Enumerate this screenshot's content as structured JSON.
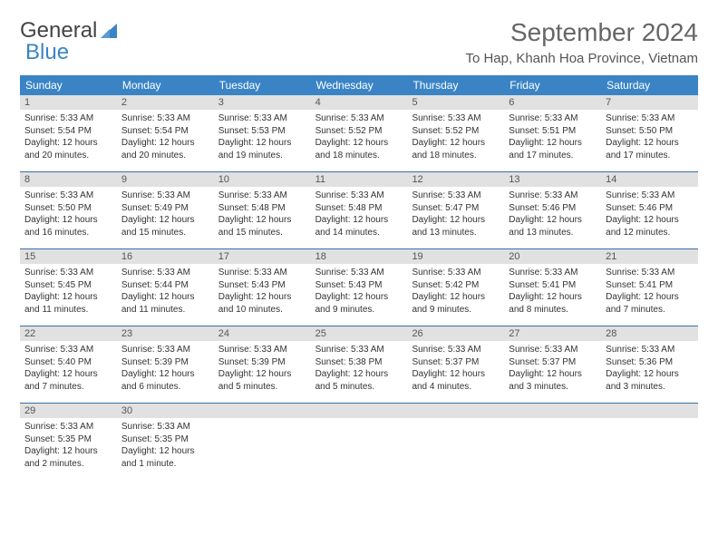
{
  "logo": {
    "word1": "General",
    "word2": "Blue"
  },
  "title": "September 2024",
  "location": "To Hap, Khanh Hoa Province, Vietnam",
  "colors": {
    "header_bg": "#3a84c5",
    "header_text": "#ffffff",
    "daynum_bg": "#e1e1e1",
    "week_border": "#3a6ea5",
    "logo_blue": "#3a84c5",
    "title_color": "#666666",
    "body_text": "#333333"
  },
  "day_names": [
    "Sunday",
    "Monday",
    "Tuesday",
    "Wednesday",
    "Thursday",
    "Friday",
    "Saturday"
  ],
  "weeks": [
    [
      {
        "n": "1",
        "sr": "Sunrise: 5:33 AM",
        "ss": "Sunset: 5:54 PM",
        "dl": "Daylight: 12 hours and 20 minutes."
      },
      {
        "n": "2",
        "sr": "Sunrise: 5:33 AM",
        "ss": "Sunset: 5:54 PM",
        "dl": "Daylight: 12 hours and 20 minutes."
      },
      {
        "n": "3",
        "sr": "Sunrise: 5:33 AM",
        "ss": "Sunset: 5:53 PM",
        "dl": "Daylight: 12 hours and 19 minutes."
      },
      {
        "n": "4",
        "sr": "Sunrise: 5:33 AM",
        "ss": "Sunset: 5:52 PM",
        "dl": "Daylight: 12 hours and 18 minutes."
      },
      {
        "n": "5",
        "sr": "Sunrise: 5:33 AM",
        "ss": "Sunset: 5:52 PM",
        "dl": "Daylight: 12 hours and 18 minutes."
      },
      {
        "n": "6",
        "sr": "Sunrise: 5:33 AM",
        "ss": "Sunset: 5:51 PM",
        "dl": "Daylight: 12 hours and 17 minutes."
      },
      {
        "n": "7",
        "sr": "Sunrise: 5:33 AM",
        "ss": "Sunset: 5:50 PM",
        "dl": "Daylight: 12 hours and 17 minutes."
      }
    ],
    [
      {
        "n": "8",
        "sr": "Sunrise: 5:33 AM",
        "ss": "Sunset: 5:50 PM",
        "dl": "Daylight: 12 hours and 16 minutes."
      },
      {
        "n": "9",
        "sr": "Sunrise: 5:33 AM",
        "ss": "Sunset: 5:49 PM",
        "dl": "Daylight: 12 hours and 15 minutes."
      },
      {
        "n": "10",
        "sr": "Sunrise: 5:33 AM",
        "ss": "Sunset: 5:48 PM",
        "dl": "Daylight: 12 hours and 15 minutes."
      },
      {
        "n": "11",
        "sr": "Sunrise: 5:33 AM",
        "ss": "Sunset: 5:48 PM",
        "dl": "Daylight: 12 hours and 14 minutes."
      },
      {
        "n": "12",
        "sr": "Sunrise: 5:33 AM",
        "ss": "Sunset: 5:47 PM",
        "dl": "Daylight: 12 hours and 13 minutes."
      },
      {
        "n": "13",
        "sr": "Sunrise: 5:33 AM",
        "ss": "Sunset: 5:46 PM",
        "dl": "Daylight: 12 hours and 13 minutes."
      },
      {
        "n": "14",
        "sr": "Sunrise: 5:33 AM",
        "ss": "Sunset: 5:46 PM",
        "dl": "Daylight: 12 hours and 12 minutes."
      }
    ],
    [
      {
        "n": "15",
        "sr": "Sunrise: 5:33 AM",
        "ss": "Sunset: 5:45 PM",
        "dl": "Daylight: 12 hours and 11 minutes."
      },
      {
        "n": "16",
        "sr": "Sunrise: 5:33 AM",
        "ss": "Sunset: 5:44 PM",
        "dl": "Daylight: 12 hours and 11 minutes."
      },
      {
        "n": "17",
        "sr": "Sunrise: 5:33 AM",
        "ss": "Sunset: 5:43 PM",
        "dl": "Daylight: 12 hours and 10 minutes."
      },
      {
        "n": "18",
        "sr": "Sunrise: 5:33 AM",
        "ss": "Sunset: 5:43 PM",
        "dl": "Daylight: 12 hours and 9 minutes."
      },
      {
        "n": "19",
        "sr": "Sunrise: 5:33 AM",
        "ss": "Sunset: 5:42 PM",
        "dl": "Daylight: 12 hours and 9 minutes."
      },
      {
        "n": "20",
        "sr": "Sunrise: 5:33 AM",
        "ss": "Sunset: 5:41 PM",
        "dl": "Daylight: 12 hours and 8 minutes."
      },
      {
        "n": "21",
        "sr": "Sunrise: 5:33 AM",
        "ss": "Sunset: 5:41 PM",
        "dl": "Daylight: 12 hours and 7 minutes."
      }
    ],
    [
      {
        "n": "22",
        "sr": "Sunrise: 5:33 AM",
        "ss": "Sunset: 5:40 PM",
        "dl": "Daylight: 12 hours and 7 minutes."
      },
      {
        "n": "23",
        "sr": "Sunrise: 5:33 AM",
        "ss": "Sunset: 5:39 PM",
        "dl": "Daylight: 12 hours and 6 minutes."
      },
      {
        "n": "24",
        "sr": "Sunrise: 5:33 AM",
        "ss": "Sunset: 5:39 PM",
        "dl": "Daylight: 12 hours and 5 minutes."
      },
      {
        "n": "25",
        "sr": "Sunrise: 5:33 AM",
        "ss": "Sunset: 5:38 PM",
        "dl": "Daylight: 12 hours and 5 minutes."
      },
      {
        "n": "26",
        "sr": "Sunrise: 5:33 AM",
        "ss": "Sunset: 5:37 PM",
        "dl": "Daylight: 12 hours and 4 minutes."
      },
      {
        "n": "27",
        "sr": "Sunrise: 5:33 AM",
        "ss": "Sunset: 5:37 PM",
        "dl": "Daylight: 12 hours and 3 minutes."
      },
      {
        "n": "28",
        "sr": "Sunrise: 5:33 AM",
        "ss": "Sunset: 5:36 PM",
        "dl": "Daylight: 12 hours and 3 minutes."
      }
    ],
    [
      {
        "n": "29",
        "sr": "Sunrise: 5:33 AM",
        "ss": "Sunset: 5:35 PM",
        "dl": "Daylight: 12 hours and 2 minutes."
      },
      {
        "n": "30",
        "sr": "Sunrise: 5:33 AM",
        "ss": "Sunset: 5:35 PM",
        "dl": "Daylight: 12 hours and 1 minute."
      },
      {
        "empty": true
      },
      {
        "empty": true
      },
      {
        "empty": true
      },
      {
        "empty": true
      },
      {
        "empty": true
      }
    ]
  ]
}
